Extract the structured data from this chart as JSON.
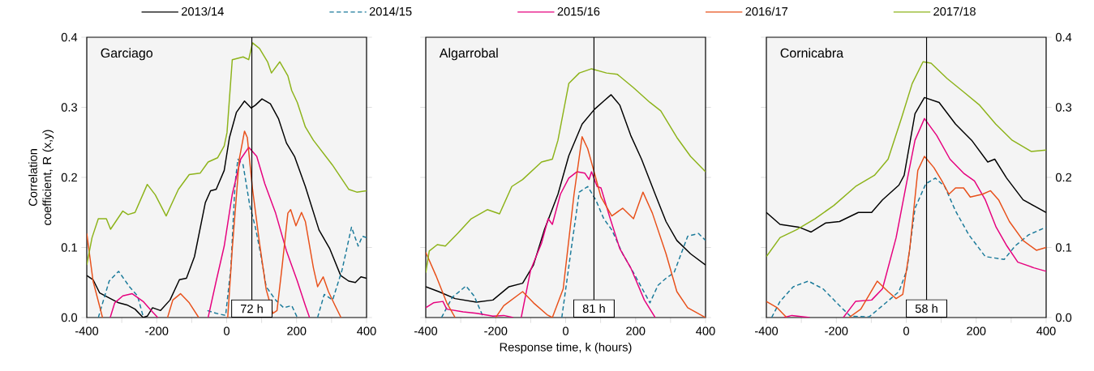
{
  "chart_data": [
    {
      "type": "line",
      "title": "Garciago",
      "ylabel": "Correlation coefficient, R (x,y)",
      "xlim": [
        -400,
        400
      ],
      "ylim": [
        0,
        0.4
      ],
      "xticks": [
        -400,
        {
          "value": -300,
          "label": null
        },
        -200,
        {
          "value": -100,
          "label": null
        },
        0,
        {
          "value": 100,
          "label": null
        },
        200,
        {
          "value": 300,
          "label": null
        },
        400
      ],
      "yticks": [
        {
          "value": 0,
          "label": "0.0"
        },
        0.1,
        0.2,
        0.3,
        0.4
      ],
      "legend": "top",
      "ref_lines": [
        {
          "axis": "x",
          "value": 72,
          "label": "72 h"
        }
      ],
      "series": [
        {
          "name": "2013/14",
          "color": "#000000",
          "x": [
            -400,
            -382,
            -363,
            -340,
            -309,
            -285,
            -262,
            -239,
            -227,
            -212,
            -189,
            -162,
            -135,
            -115,
            -92,
            -61,
            -46,
            -30,
            -7,
            8,
            28,
            51,
            70,
            82,
            101,
            125,
            148,
            171,
            194,
            225,
            264,
            295,
            326,
            349,
            368,
            384,
            400
          ],
          "values": [
            0.06,
            0.054,
            0.035,
            0.029,
            0.021,
            0.018,
            0.012,
            0.0,
            0.002,
            0.014,
            0.01,
            0.025,
            0.054,
            0.056,
            0.087,
            0.164,
            0.181,
            0.183,
            0.21,
            0.257,
            0.293,
            0.309,
            0.299,
            0.303,
            0.312,
            0.305,
            0.284,
            0.249,
            0.23,
            0.187,
            0.125,
            0.098,
            0.06,
            0.052,
            0.05,
            0.058,
            0.056
          ]
        },
        {
          "name": "2014/15",
          "color": "#1a7a9a",
          "line_style": "dashed",
          "x": [
            -367,
            -336,
            -309,
            -278,
            -255,
            -239,
            -100,
            -55,
            -30,
            -3,
            12,
            24,
            32,
            47,
            66,
            82,
            97,
            113,
            140,
            163,
            186,
            202,
            230,
            260,
            279,
            303,
            330,
            357,
            376,
            388,
            400
          ],
          "values": [
            0,
            0.052,
            0.066,
            0.044,
            0.031,
            0.002,
            null,
            0.01,
            0.006,
            0.003,
            0.071,
            0.191,
            0.226,
            0.218,
            0.16,
            0.129,
            0.091,
            0.044,
            0.025,
            0.014,
            0.017,
            0,
            null,
            0,
            0.033,
            0.025,
            0.068,
            0.129,
            0.102,
            0.116,
            0.114
          ]
        },
        {
          "name": "2015/16",
          "color": "#e6007e",
          "x": [
            -333,
            -320,
            -297,
            -270,
            -239,
            -216,
            -197,
            -120,
            -53,
            -30,
            -7,
            16,
            40,
            63,
            86,
            109,
            140,
            171,
            202,
            225,
            237
          ],
          "values": [
            0,
            0.021,
            0.031,
            0.034,
            0.023,
            0.01,
            0,
            null,
            0,
            0.052,
            0.102,
            0.176,
            0.226,
            0.243,
            0.23,
            0.191,
            0.149,
            0.095,
            0.052,
            0.017,
            0
          ]
        },
        {
          "name": "2016/17",
          "color": "#e8501a",
          "x": [
            -400,
            -382,
            -355,
            -260,
            -169,
            -154,
            -132,
            -107,
            -80,
            -40,
            3,
            16,
            36,
            51,
            59,
            74,
            94,
            113,
            132,
            144,
            159,
            175,
            183,
            198,
            214,
            225,
            248,
            260,
            276,
            291,
            310,
            327
          ],
          "values": [
            0.12,
            0.052,
            0,
            null,
            0,
            0.025,
            0.034,
            0.021,
            0,
            null,
            0,
            0.098,
            0.226,
            0.266,
            0.257,
            0.183,
            0.106,
            0.04,
            0.006,
            0.01,
            0.075,
            0.149,
            0.154,
            0.131,
            0.15,
            0.137,
            0.071,
            0.044,
            0.058,
            0.037,
            0.017,
            0
          ]
        },
        {
          "name": "2017/18",
          "color": "#8db31a",
          "x": [
            -400,
            -385,
            -367,
            -344,
            -332,
            -297,
            -282,
            -262,
            -227,
            -204,
            -173,
            -138,
            -107,
            -76,
            -53,
            -26,
            -7,
            1,
            16,
            47,
            63,
            74,
            94,
            117,
            128,
            152,
            175,
            186,
            202,
            225,
            248,
            302,
            349,
            372,
            400
          ],
          "values": [
            0.075,
            0.114,
            0.141,
            0.141,
            0.126,
            0.152,
            0.147,
            0.15,
            0.19,
            0.175,
            0.145,
            0.183,
            0.204,
            0.206,
            0.222,
            0.228,
            0.245,
            0.264,
            0.368,
            0.372,
            0.368,
            0.392,
            0.384,
            0.365,
            0.349,
            0.365,
            0.345,
            0.324,
            0.307,
            0.272,
            0.253,
            0.218,
            0.183,
            0.179,
            0.181
          ]
        }
      ]
    },
    {
      "type": "line",
      "title": "Algarrobal",
      "xlabel": "Response time, k (hours)",
      "xlim": [
        -400,
        400
      ],
      "ylim": [
        0,
        0.4
      ],
      "tick_labels": "x",
      "xticks": [
        -400,
        {
          "value": -300,
          "label": null
        },
        -200,
        {
          "value": -100,
          "label": null
        },
        0,
        {
          "value": 100,
          "label": null
        },
        200,
        {
          "value": 300,
          "label": null
        },
        400
      ],
      "yticks": [
        0,
        0.1,
        0.2,
        0.3,
        0.4
      ],
      "ref_lines": [
        {
          "axis": "x",
          "value": 81,
          "label": "81 h"
        }
      ],
      "series": [
        {
          "color": "#000000",
          "x": [
            -400,
            -363,
            -316,
            -255,
            -208,
            -162,
            -123,
            -92,
            -61,
            -22,
            9,
            47,
            82,
            109,
            130,
            155,
            186,
            217,
            256,
            287,
            318,
            357,
            400
          ],
          "values": [
            0.044,
            0.037,
            0.027,
            0.022,
            0.025,
            0.044,
            0.049,
            0.075,
            0.125,
            0.176,
            0.231,
            0.276,
            0.297,
            0.309,
            0.318,
            0.303,
            0.26,
            0.226,
            0.176,
            0.137,
            0.11,
            0.091,
            0.075
          ]
        },
        {
          "color": "#1a7a9a",
          "line_style": "dashed",
          "x": [
            -355,
            -324,
            -285,
            -262,
            -235,
            -120,
            -11,
            16,
            39,
            63,
            86,
            109,
            132,
            163,
            194,
            241,
            264,
            287,
            310,
            349,
            380,
            400
          ],
          "values": [
            0,
            0.029,
            0.045,
            0.031,
            0,
            null,
            0,
            0.098,
            0.179,
            0.187,
            0.168,
            0.141,
            0.125,
            0.091,
            0.064,
            0.021,
            0.046,
            0.056,
            0.064,
            0.116,
            0.12,
            0.11
          ]
        },
        {
          "color": "#e6007e",
          "x": [
            -400,
            -378,
            -351,
            -340,
            -293,
            -255,
            -208,
            -177,
            -150,
            -138,
            -127,
            -100,
            -69,
            -50,
            -38,
            -15,
            9,
            32,
            55,
            67,
            74,
            90,
            101,
            125,
            155,
            186,
            225,
            256
          ],
          "values": [
            0.014,
            0.021,
            0.023,
            0.012,
            0.008,
            0.006,
            0.002,
            0.003,
            0,
            null,
            0,
            0.068,
            0.106,
            0.141,
            0.133,
            0.176,
            0.199,
            0.208,
            0.206,
            0.197,
            0.208,
            0.187,
            0.185,
            0.145,
            0.098,
            0.071,
            0.025,
            0
          ]
        },
        {
          "color": "#e8501a",
          "x": [
            -400,
            -371,
            -340,
            -316,
            -260,
            -200,
            -177,
            -123,
            -92,
            -53,
            -38,
            -7,
            24,
            47,
            63,
            78,
            101,
            132,
            163,
            194,
            221,
            248,
            287,
            318,
            349,
            400
          ],
          "values": [
            0.093,
            0.06,
            0.021,
            0,
            null,
            0,
            0.017,
            0.037,
            0.021,
            0.004,
            0,
            0.041,
            0.176,
            0.258,
            0.241,
            0.214,
            0.172,
            0.145,
            0.156,
            0.141,
            0.179,
            0.149,
            0.091,
            0.037,
            0.014,
            0
          ]
        },
        {
          "color": "#8db31a",
          "x": [
            -400,
            -390,
            -367,
            -344,
            -309,
            -270,
            -224,
            -189,
            -154,
            -123,
            -69,
            -38,
            -22,
            9,
            39,
            74,
            117,
            148,
            194,
            241,
            272,
            318,
            357,
            400
          ],
          "values": [
            0.064,
            0.095,
            0.104,
            0.102,
            0.12,
            0.141,
            0.154,
            0.148,
            0.187,
            0.197,
            0.222,
            0.226,
            0.253,
            0.334,
            0.349,
            0.355,
            0.349,
            0.347,
            0.328,
            0.307,
            0.295,
            0.257,
            0.23,
            0.208
          ]
        }
      ]
    },
    {
      "type": "line",
      "title": "Cornicabra",
      "xlim": [
        -400,
        400
      ],
      "ylim": [
        0,
        0.4
      ],
      "xticks": [
        -400,
        {
          "value": -300,
          "label": null
        },
        -200,
        {
          "value": -100,
          "label": null
        },
        0,
        {
          "value": 100,
          "label": null
        },
        200,
        {
          "value": 300,
          "label": null
        },
        400
      ],
      "yticks": [
        {
          "value": 0,
          "label": "0.0"
        },
        0.1,
        0.2,
        0.3,
        0.4
      ],
      "ref_lines": [
        {
          "axis": "x",
          "value": 58,
          "label": "58 h"
        }
      ],
      "series": [
        {
          "color": "#000000",
          "x": [
            -400,
            -361,
            -307,
            -272,
            -230,
            -191,
            -137,
            -99,
            -68,
            -21,
            -6,
            25,
            52,
            94,
            141,
            187,
            233,
            253,
            287,
            334,
            400
          ],
          "values": [
            0.15,
            0.133,
            0.129,
            0.122,
            0.135,
            0.137,
            0.15,
            0.15,
            0.168,
            0.189,
            0.203,
            0.291,
            0.314,
            0.307,
            0.276,
            0.253,
            0.222,
            0.226,
            0.199,
            0.168,
            0.15
          ]
        },
        {
          "color": "#1a7a9a",
          "line_style": "dashed",
          "x": [
            -385,
            -361,
            -323,
            -280,
            -238,
            -191,
            -160,
            -106,
            -68,
            -21,
            2,
            25,
            56,
            83,
            110,
            141,
            179,
            226,
            280,
            311,
            350,
            400
          ],
          "values": [
            0,
            0.023,
            0.044,
            0.052,
            0.041,
            0.017,
            0.002,
            0.001,
            0.017,
            0.037,
            0.068,
            0.156,
            0.191,
            0.199,
            0.187,
            0.152,
            0.118,
            0.087,
            0.083,
            0.102,
            0.118,
            0.129
          ]
        },
        {
          "color": "#e6007e",
          "x": [
            -350,
            -327,
            -276,
            -230,
            -180,
            -145,
            -99,
            -68,
            -29,
            2,
            25,
            52,
            87,
            125,
            164,
            195,
            226,
            257,
            288,
            319,
            365,
            400
          ],
          "values": [
            0,
            0.003,
            0,
            null,
            0,
            0.023,
            0.025,
            0.041,
            0.114,
            0.195,
            0.253,
            0.284,
            0.26,
            0.226,
            0.206,
            0.195,
            0.168,
            0.129,
            0.102,
            0.079,
            0.071,
            0.066
          ]
        },
        {
          "color": "#e8501a",
          "x": [
            -400,
            -369,
            -342,
            -250,
            -164,
            -130,
            -83,
            -52,
            -29,
            -10,
            10,
            33,
            52,
            79,
            102,
            122,
            141,
            164,
            183,
            218,
            241,
            264,
            295,
            334,
            372,
            400
          ],
          "values": [
            0.023,
            0.014,
            0,
            null,
            0,
            0.012,
            0.052,
            0.037,
            0.027,
            0.033,
            0.098,
            0.21,
            0.23,
            0.214,
            0.195,
            0.176,
            0.185,
            0.185,
            0.172,
            0.176,
            0.181,
            0.168,
            0.137,
            0.11,
            0.096,
            0.1
          ]
        },
        {
          "color": "#8db31a",
          "x": [
            -400,
            -361,
            -315,
            -261,
            -207,
            -145,
            -91,
            -52,
            -14,
            17,
            48,
            71,
            117,
            164,
            210,
            256,
            303,
            357,
            400
          ],
          "values": [
            0.087,
            0.114,
            0.125,
            0.141,
            0.16,
            0.187,
            0.203,
            0.226,
            0.284,
            0.334,
            0.365,
            0.363,
            0.341,
            0.322,
            0.303,
            0.276,
            0.253,
            0.237,
            0.239
          ]
        }
      ]
    }
  ]
}
